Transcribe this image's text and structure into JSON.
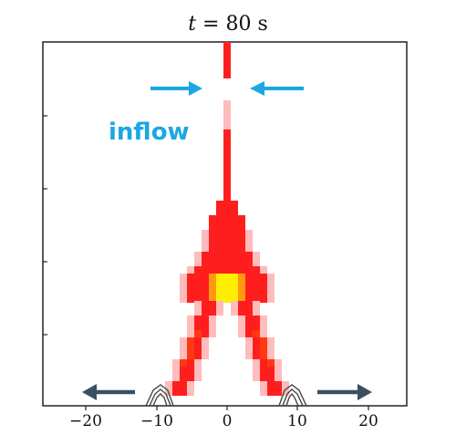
{
  "title": {
    "var": "t",
    "rest": " = 80 s"
  },
  "annotation": {
    "inflow": "inflow"
  },
  "x_ticks": [
    "−20",
    "−10",
    "0",
    "10",
    "20"
  ],
  "colors": {
    "inflow_arrow": "#1aa7e4",
    "outflow_arrow": "#3a5060",
    "plume_edge": "#ffe0e0",
    "plume_mid": "#ff2a2a",
    "plume_core": "#ffff00",
    "contour": "#444444"
  },
  "icons": {
    "inflow_left": "arrow-right-icon",
    "inflow_right": "arrow-left-icon",
    "outflow_left": "arrow-left-icon",
    "outflow_right": "arrow-right-icon"
  }
}
